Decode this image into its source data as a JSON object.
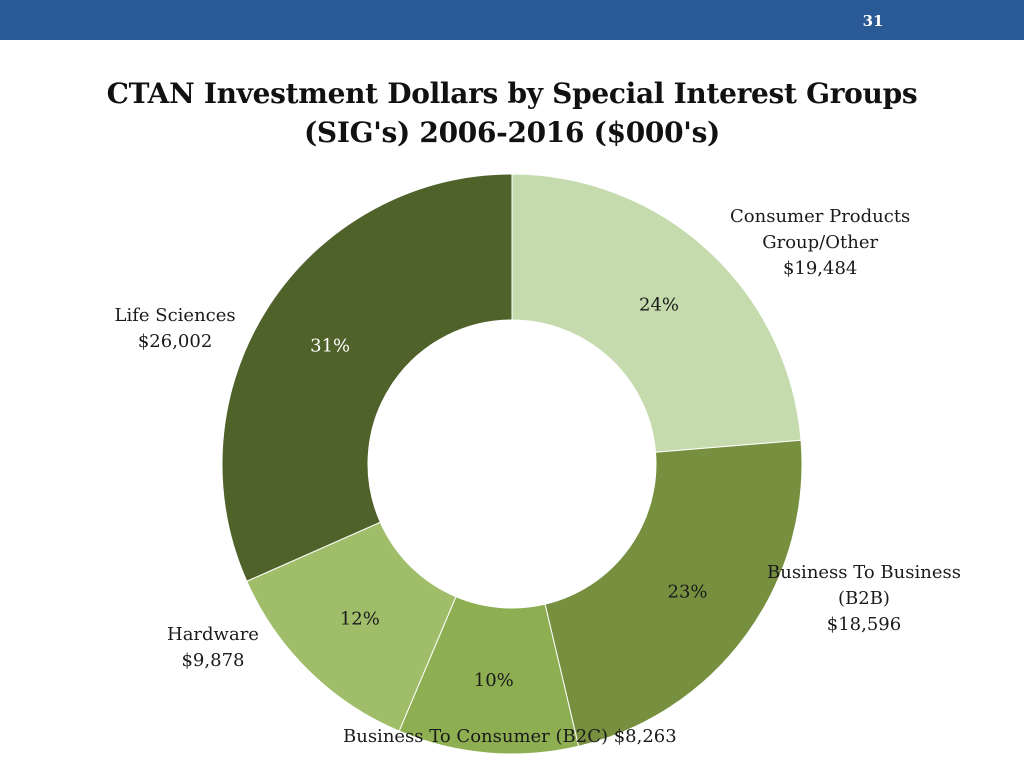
{
  "page_number": "31",
  "chart_data": {
    "type": "pie",
    "donut": true,
    "title_lines": [
      "CTAN Investment Dollars by Special Interest Groups",
      "(SIG's) 2006-2016 ($000's)"
    ],
    "legend": "none",
    "slices": [
      {
        "category_lines": [
          "Consumer Products",
          "Group/Other"
        ],
        "value_label": "$19,484",
        "value": 19484,
        "percent": "24%",
        "color": "#c6dbad"
      },
      {
        "category_lines": [
          "Business To Business",
          "(B2B)"
        ],
        "value_label": "$18,596",
        "value": 18596,
        "percent": "23%",
        "color": "#769040"
      },
      {
        "category_lines": [
          "Business To Consumer (B2C) $8,263"
        ],
        "value_label": "",
        "value": 8263,
        "percent": "10%",
        "color": "#8eae52"
      },
      {
        "category_lines": [
          "Hardware"
        ],
        "value_label": "$9,878",
        "value": 9878,
        "percent": "12%",
        "color": "#a0bd6a"
      },
      {
        "category_lines": [
          "Life Sciences"
        ],
        "value_label": "$26,002",
        "value": 26002,
        "percent": "31%",
        "color": "#4f6229"
      }
    ]
  }
}
